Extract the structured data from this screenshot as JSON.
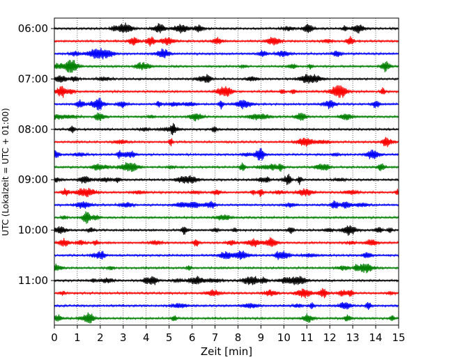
{
  "chart_data": {
    "type": "line",
    "title": "",
    "xlabel": "Zeit  [min]",
    "ylabel": "UTC (Lokalzeit = UTC + 01:00)",
    "xlim": [
      0,
      15
    ],
    "x_ticks": [
      "0",
      "1",
      "2",
      "3",
      "4",
      "5",
      "6",
      "7",
      "8",
      "9",
      "10",
      "11",
      "12",
      "13",
      "14",
      "15"
    ],
    "y_ticks": [
      "06:00",
      "07:00",
      "08:00",
      "09:00",
      "10:00",
      "11:00"
    ],
    "trace_start_times": [
      "06:00",
      "06:15",
      "06:30",
      "06:45",
      "07:00",
      "07:15",
      "07:30",
      "07:45",
      "08:00",
      "08:15",
      "08:30",
      "08:45",
      "09:00",
      "09:15",
      "09:30",
      "09:45",
      "10:00",
      "10:15",
      "10:30",
      "10:45",
      "11:00",
      "11:15",
      "11:30",
      "11:45"
    ],
    "trace_color_cycle": [
      "#000000",
      "#ff0000",
      "#0000ff",
      "#008000"
    ],
    "grid": "vertical dotted at each minute",
    "note_values": "seismogram-style traces; amplitudes are unlabeled"
  }
}
